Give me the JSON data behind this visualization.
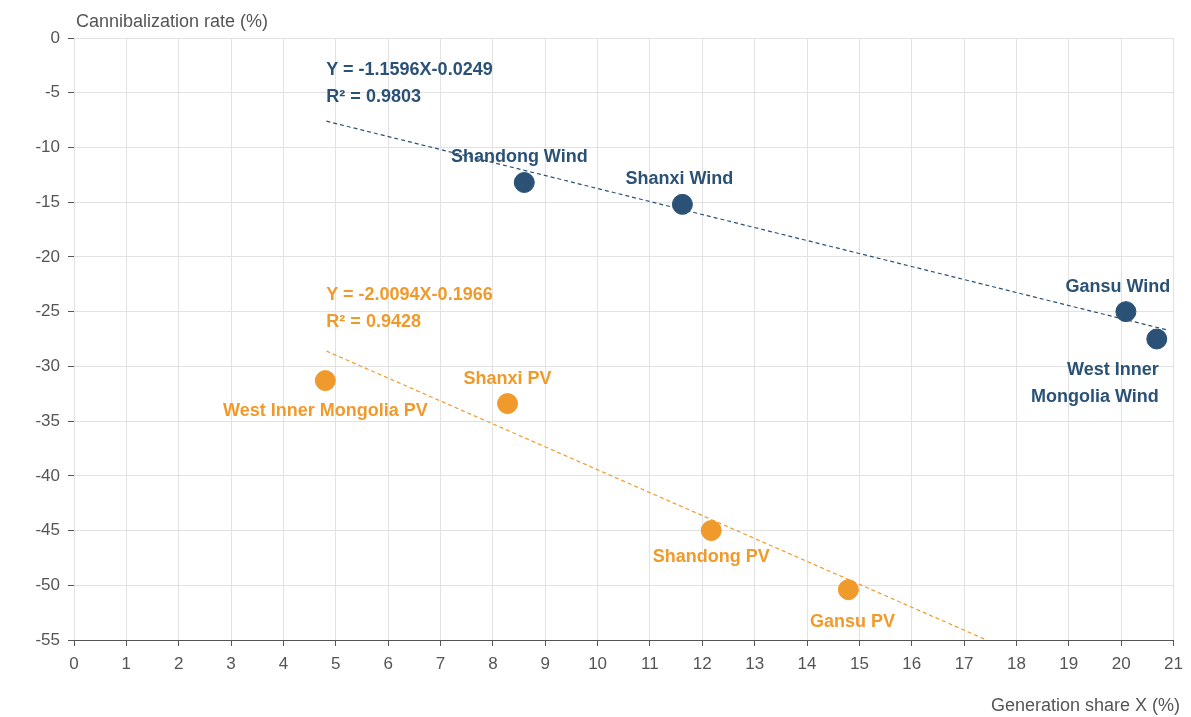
{
  "chart_data": {
    "type": "scatter",
    "xlabel": "Generation share X (%)",
    "ylabel": "Cannibalization rate (%)",
    "xlim": [
      0,
      21
    ],
    "xticks": [
      0,
      1,
      2,
      3,
      4,
      5,
      6,
      7,
      8,
      9,
      10,
      11,
      12,
      13,
      14,
      15,
      16,
      17,
      18,
      19,
      20,
      21
    ],
    "ylim": [
      -55,
      0
    ],
    "yticks": [
      -55,
      -50,
      -45,
      -40,
      -35,
      -30,
      -25,
      -20,
      -15,
      -10,
      -5,
      0
    ],
    "grid": true,
    "marker": "circle",
    "series": [
      {
        "name": "Shandong Wind",
        "color": "#2b5276",
        "x": [
          8.6
        ],
        "values": [
          -13.2
        ]
      },
      {
        "name": "Shanxi Wind",
        "color": "#2b5276",
        "x": [
          11.62
        ],
        "values": [
          -15.2
        ]
      },
      {
        "name": "Gansu Wind",
        "color": "#2b5276",
        "x": [
          20.09
        ],
        "values": [
          -25.0
        ]
      },
      {
        "name": "West Inner\nMongolia Wind",
        "color": "#2b5276",
        "x": [
          20.68
        ],
        "values": [
          -27.5
        ]
      },
      {
        "name": "Y = -1.1596X-0.0249\nR² = 0.9803",
        "type": "line",
        "marker": "none",
        "line_style": "dashed",
        "color": "#2b5276",
        "x": [
          4.82,
          20.9
        ],
        "values": [
          -7.6,
          -26.7
        ]
      },
      {
        "name": "West Inner Mongolia PV",
        "color": "#f19a2c",
        "x": [
          4.8
        ],
        "values": [
          -31.3
        ]
      },
      {
        "name": "Shanxi PV",
        "color": "#f19a2c",
        "x": [
          8.28
        ],
        "values": [
          -33.4
        ]
      },
      {
        "name": "Shandong PV",
        "color": "#f19a2c",
        "x": [
          12.17
        ],
        "values": [
          -45.0
        ]
      },
      {
        "name": "Gansu PV",
        "color": "#f19a2c",
        "x": [
          14.79
        ],
        "values": [
          -50.4
        ]
      },
      {
        "name": "Y = -2.0094X-0.1966\nR² = 0.9428",
        "type": "line",
        "marker": "none",
        "line_style": "dashed",
        "color": "#f19a2c",
        "x": [
          4.82,
          17.43
        ],
        "values": [
          -28.6,
          -55
        ]
      }
    ]
  }
}
